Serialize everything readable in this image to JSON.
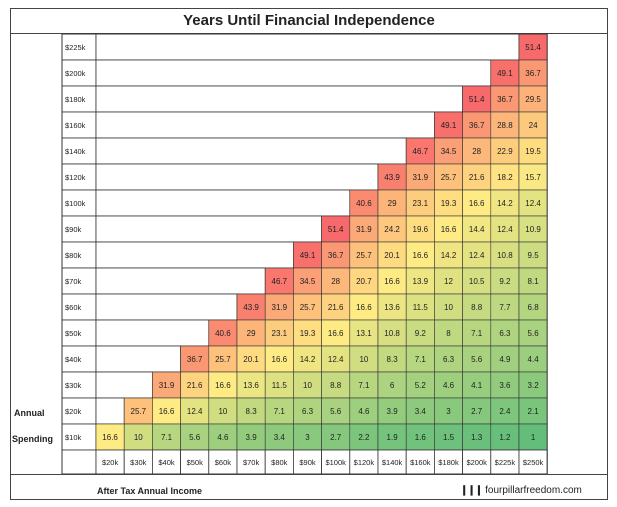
{
  "title": "Years Until Financial Independence",
  "row_axis_label": [
    "Annual",
    "Spending"
  ],
  "footer": {
    "xlabel": "After Tax Annual Income",
    "source": "fourpillarfreedom.com",
    "source_icon": "bars-logo-icon"
  },
  "colors": {
    "low": "#63be7b",
    "mid": "#ffeb84",
    "high": "#f8696b",
    "grid": "#333333"
  },
  "chart_data": {
    "type": "heatmap",
    "title": "Years Until Financial Independence",
    "xlabel": "After Tax Annual Income",
    "ylabel": "Annual Spending",
    "columns": [
      "$20k",
      "$30k",
      "$40k",
      "$50k",
      "$60k",
      "$70k",
      "$80k",
      "$90k",
      "$100k",
      "$120k",
      "$140k",
      "$160k",
      "$180k",
      "$200k",
      "$225k",
      "$250k"
    ],
    "rows": [
      "$225k",
      "$200k",
      "$180k",
      "$160k",
      "$140k",
      "$120k",
      "$100k",
      "$90k",
      "$80k",
      "$70k",
      "$60k",
      "$50k",
      "$40k",
      "$30k",
      "$20k",
      "$10k"
    ],
    "values": [
      [
        null,
        null,
        null,
        null,
        null,
        null,
        null,
        null,
        null,
        null,
        null,
        null,
        null,
        null,
        null,
        51.4
      ],
      [
        null,
        null,
        null,
        null,
        null,
        null,
        null,
        null,
        null,
        null,
        null,
        null,
        null,
        null,
        49.1,
        36.7
      ],
      [
        null,
        null,
        null,
        null,
        null,
        null,
        null,
        null,
        null,
        null,
        null,
        null,
        null,
        51.4,
        36.7,
        29.5
      ],
      [
        null,
        null,
        null,
        null,
        null,
        null,
        null,
        null,
        null,
        null,
        null,
        null,
        49.1,
        36.7,
        28.8,
        24
      ],
      [
        null,
        null,
        null,
        null,
        null,
        null,
        null,
        null,
        null,
        null,
        null,
        46.7,
        34.5,
        28,
        22.9,
        19.5
      ],
      [
        null,
        null,
        null,
        null,
        null,
        null,
        null,
        null,
        null,
        null,
        43.9,
        31.9,
        25.7,
        21.6,
        18.2,
        15.7
      ],
      [
        null,
        null,
        null,
        null,
        null,
        null,
        null,
        null,
        null,
        40.6,
        29,
        23.1,
        19.3,
        16.6,
        14.2,
        12.4
      ],
      [
        null,
        null,
        null,
        null,
        null,
        null,
        null,
        null,
        51.4,
        31.9,
        24.2,
        19.6,
        16.6,
        14.4,
        12.4,
        10.9
      ],
      [
        null,
        null,
        null,
        null,
        null,
        null,
        null,
        49.1,
        36.7,
        25.7,
        20.1,
        16.6,
        14.2,
        12.4,
        10.8,
        9.5
      ],
      [
        null,
        null,
        null,
        null,
        null,
        null,
        46.7,
        34.5,
        28,
        20.7,
        16.6,
        13.9,
        12,
        10.5,
        9.2,
        8.1
      ],
      [
        null,
        null,
        null,
        null,
        null,
        43.9,
        31.9,
        25.7,
        21.6,
        16.6,
        13.6,
        11.5,
        10,
        8.8,
        7.7,
        6.8
      ],
      [
        null,
        null,
        null,
        null,
        40.6,
        29,
        23.1,
        19.3,
        16.6,
        13.1,
        10.8,
        9.2,
        8,
        7.1,
        6.3,
        5.6
      ],
      [
        null,
        null,
        null,
        36.7,
        25.7,
        20.1,
        16.6,
        14.2,
        12.4,
        10,
        8.3,
        7.1,
        6.3,
        5.6,
        4.9,
        4.4
      ],
      [
        null,
        null,
        31.9,
        21.6,
        16.6,
        13.6,
        11.5,
        10,
        8.8,
        7.1,
        6,
        5.2,
        4.6,
        4.1,
        3.6,
        3.2
      ],
      [
        null,
        25.7,
        16.6,
        12.4,
        10,
        8.3,
        7.1,
        6.3,
        5.6,
        4.6,
        3.9,
        3.4,
        3,
        2.7,
        2.4,
        2.1
      ],
      [
        16.6,
        10,
        7.1,
        5.6,
        4.6,
        3.9,
        3.4,
        3,
        2.7,
        2.2,
        1.9,
        1.6,
        1.5,
        1.3,
        1.2,
        1
      ]
    ],
    "color_scale": {
      "min": 1,
      "max": 51.4
    }
  }
}
